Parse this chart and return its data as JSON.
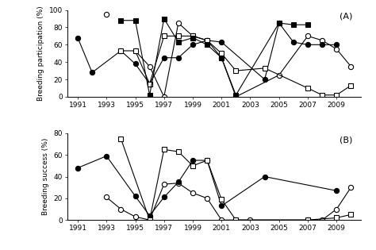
{
  "panel_A": {
    "open_circle": {
      "years": [
        1993,
        1994,
        1995,
        1996,
        1997,
        1998,
        1999,
        2000,
        2001,
        2002,
        2005,
        2007,
        2008,
        2009,
        2010
      ],
      "values": [
        95,
        null,
        53,
        35,
        0,
        85,
        70,
        65,
        45,
        0,
        25,
        70,
        65,
        55,
        35
      ]
    },
    "filled_circle": {
      "years": [
        1991,
        1992,
        1994,
        1995,
        1996,
        1997,
        1998,
        1999,
        2000,
        2001,
        2004,
        2005,
        2006,
        2007,
        2008,
        2009
      ],
      "values": [
        68,
        28,
        53,
        38,
        15,
        45,
        45,
        60,
        65,
        63,
        20,
        85,
        63,
        60,
        60,
        60
      ]
    },
    "open_square": {
      "years": [
        1994,
        1995,
        1996,
        1997,
        1998,
        1999,
        2000,
        2001,
        2002,
        2004,
        2007,
        2008,
        2009,
        2010
      ],
      "values": [
        53,
        53,
        15,
        70,
        70,
        70,
        65,
        50,
        30,
        33,
        10,
        2,
        2,
        13
      ]
    },
    "filled_square": {
      "years": [
        1994,
        1995,
        1996,
        1997,
        1998,
        1999,
        2000,
        2001,
        2002,
        2005,
        2006,
        2007
      ],
      "values": [
        88,
        88,
        2,
        90,
        63,
        68,
        60,
        45,
        2,
        85,
        83,
        83
      ]
    }
  },
  "panel_B": {
    "open_circle": {
      "years": [
        1993,
        1994,
        1995,
        1996,
        1997,
        1998,
        1999,
        2000,
        2001,
        2002,
        2003,
        2007,
        2008,
        2009,
        2010
      ],
      "values": [
        21,
        10,
        3,
        0,
        33,
        34,
        25,
        20,
        0,
        0,
        0,
        0,
        0,
        10,
        30
      ]
    },
    "filled_circle": {
      "years": [
        1991,
        1993,
        1995,
        1996,
        1997,
        1998,
        1999,
        2000,
        2001,
        2004,
        2009
      ],
      "values": [
        48,
        59,
        22,
        4,
        21,
        35,
        55,
        55,
        13,
        40,
        27
      ]
    },
    "open_square": {
      "years": [
        1994,
        1996,
        1997,
        1998,
        1999,
        2000,
        2001,
        2002,
        2007,
        2009,
        2010
      ],
      "values": [
        75,
        0,
        65,
        63,
        50,
        55,
        19,
        0,
        0,
        2,
        5
      ]
    }
  },
  "xlim": [
    1990.3,
    2010.7
  ],
  "xticks": [
    1991,
    1993,
    1995,
    1997,
    1999,
    2001,
    2003,
    2005,
    2007,
    2009
  ],
  "ylim_A": [
    0,
    100
  ],
  "yticks_A": [
    0,
    20,
    40,
    60,
    80,
    100
  ],
  "ylim_B": [
    0,
    80
  ],
  "yticks_B": [
    0,
    20,
    40,
    60,
    80
  ],
  "ylabel_A": "Breeding participation (%)",
  "ylabel_B": "Breeding success (%)",
  "panel_label_A": "(A)",
  "panel_label_B": "(B)",
  "line_color": "black",
  "marker_size": 4.5,
  "line_width": 0.8
}
